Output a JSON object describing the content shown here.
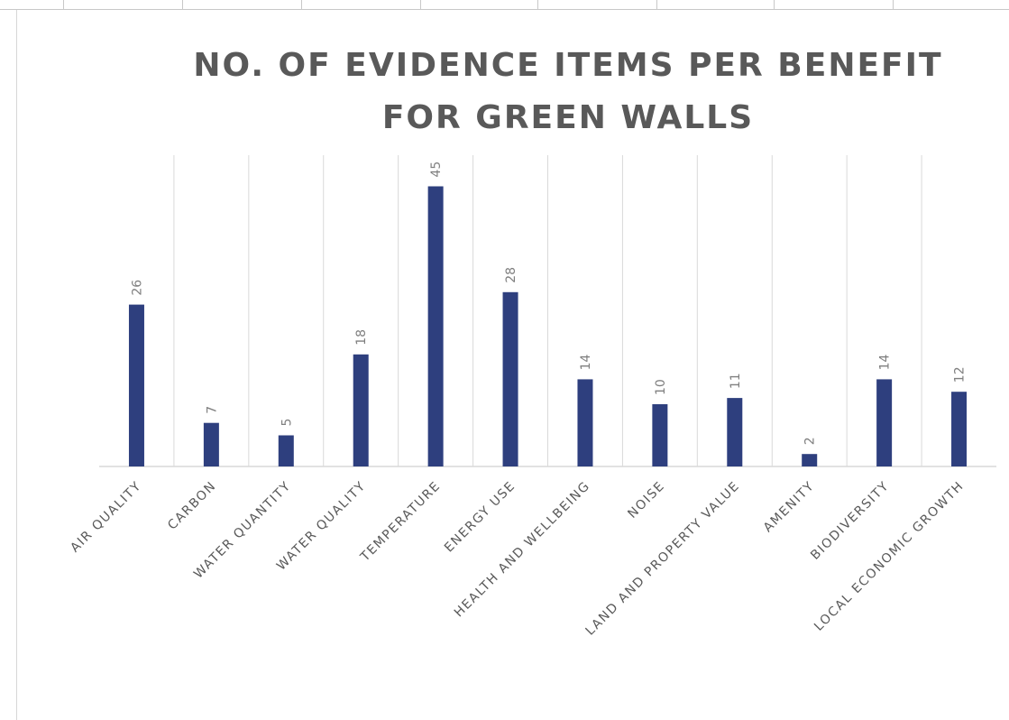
{
  "chart_data": {
    "type": "bar",
    "title_line1": "NO. OF EVIDENCE ITEMS PER BENEFIT",
    "title_line2": "FOR GREEN WALLS",
    "categories": [
      "AIR QUALITY",
      "CARBON",
      "WATER QUANTITY",
      "WATER QUALITY",
      "TEMPERATURE",
      "ENERGY USE",
      "HEALTH AND WELLBEING",
      "NOISE",
      "LAND AND PROPERTY VALUE",
      "AMENITY",
      "BIODIVERSITY",
      "LOCAL ECONOMIC GROWTH"
    ],
    "values": [
      26,
      7,
      5,
      18,
      45,
      28,
      14,
      10,
      11,
      2,
      14,
      12
    ],
    "ylim": [
      0,
      50
    ],
    "grid": "vertical",
    "bar_color": "#2e3f7e",
    "label_color": "#7f7f7f",
    "grid_color": "#d9d9d9"
  }
}
